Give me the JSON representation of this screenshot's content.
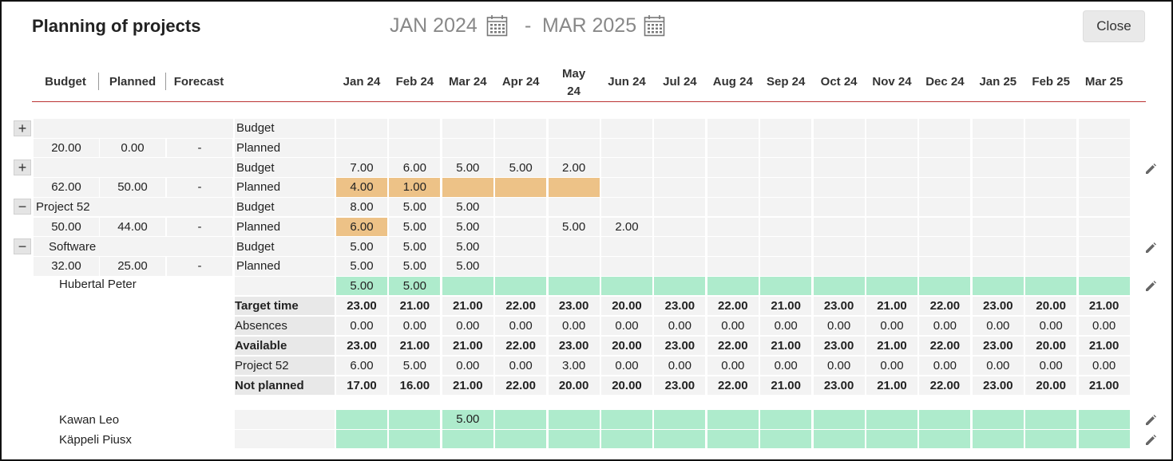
{
  "title": "Planning of projects",
  "date_range": {
    "from": "JAN 2024",
    "separator": "-",
    "to": "MAR 2025"
  },
  "close_label": "Close",
  "headers": {
    "budget": "Budget",
    "planned": "Planned",
    "forecast": "Forecast"
  },
  "months": [
    "Jan 24",
    "Feb 24",
    "Mar 24",
    "Apr 24",
    "May 24",
    "Jun 24",
    "Jul 24",
    "Aug 24",
    "Sep 24",
    "Oct 24",
    "Nov 24",
    "Dec 24",
    "Jan 25",
    "Feb 25",
    "Mar 25"
  ],
  "project_rows": [
    {
      "toggle": "+",
      "name": "",
      "budget": "20.00",
      "planned": "0.00",
      "forecast": "-",
      "budget_values": [
        "",
        "",
        "",
        "",
        "",
        "",
        "",
        "",
        "",
        "",
        "",
        "",
        "",
        "",
        ""
      ],
      "planned_values": [
        "",
        "",
        "",
        "",
        "",
        "",
        "",
        "",
        "",
        "",
        "",
        "",
        "",
        "",
        ""
      ],
      "planned_highlight": [],
      "edit": false
    },
    {
      "toggle": "+",
      "name": "",
      "budget": "62.00",
      "planned": "50.00",
      "forecast": "-",
      "budget_values": [
        "7.00",
        "6.00",
        "5.00",
        "5.00",
        "2.00",
        "",
        "",
        "",
        "",
        "",
        "",
        "",
        "",
        "",
        ""
      ],
      "planned_values": [
        "4.00",
        "1.00",
        "",
        "",
        "",
        "",
        "",
        "",
        "",
        "",
        "",
        "",
        "",
        "",
        ""
      ],
      "planned_highlight": [
        0,
        1,
        2,
        3,
        4
      ],
      "edit": true
    },
    {
      "toggle": "−",
      "name": "Project 52",
      "budget": "50.00",
      "planned": "44.00",
      "forecast": "-",
      "budget_values": [
        "8.00",
        "5.00",
        "5.00",
        "",
        "",
        "",
        "",
        "",
        "",
        "",
        "",
        "",
        "",
        "",
        ""
      ],
      "planned_values": [
        "6.00",
        "5.00",
        "5.00",
        "",
        "5.00",
        "2.00",
        "",
        "",
        "",
        "",
        "",
        "",
        "",
        "",
        ""
      ],
      "planned_highlight": [
        0
      ],
      "edit": false
    },
    {
      "toggle": "−",
      "name": "Software",
      "budget": "32.00",
      "planned": "25.00",
      "forecast": "-",
      "budget_values": [
        "5.00",
        "5.00",
        "5.00",
        "",
        "",
        "",
        "",
        "",
        "",
        "",
        "",
        "",
        "",
        "",
        ""
      ],
      "planned_values": [
        "5.00",
        "5.00",
        "5.00",
        "",
        "",
        "",
        "",
        "",
        "",
        "",
        "",
        "",
        "",
        "",
        ""
      ],
      "planned_highlight": [],
      "edit": true
    }
  ],
  "row_labels": {
    "budget": "Budget",
    "planned": "Planned"
  },
  "hubertal": {
    "name": "Hubertal Peter",
    "values": [
      "5.00",
      "5.00",
      "",
      "",
      "",
      "",
      "",
      "",
      "",
      "",
      "",
      "",
      "",
      "",
      ""
    ],
    "summary": [
      {
        "label": "Target time",
        "bold": true,
        "values": [
          "23.00",
          "21.00",
          "21.00",
          "22.00",
          "23.00",
          "20.00",
          "23.00",
          "22.00",
          "21.00",
          "23.00",
          "21.00",
          "22.00",
          "23.00",
          "20.00",
          "21.00"
        ]
      },
      {
        "label": "Absences",
        "bold": false,
        "values": [
          "0.00",
          "0.00",
          "0.00",
          "0.00",
          "0.00",
          "0.00",
          "0.00",
          "0.00",
          "0.00",
          "0.00",
          "0.00",
          "0.00",
          "0.00",
          "0.00",
          "0.00"
        ]
      },
      {
        "label": "Available",
        "bold": true,
        "values": [
          "23.00",
          "21.00",
          "21.00",
          "22.00",
          "23.00",
          "20.00",
          "23.00",
          "22.00",
          "21.00",
          "23.00",
          "21.00",
          "22.00",
          "23.00",
          "20.00",
          "21.00"
        ]
      },
      {
        "label": "Project 52",
        "bold": false,
        "values": [
          "6.00",
          "5.00",
          "0.00",
          "0.00",
          "3.00",
          "0.00",
          "0.00",
          "0.00",
          "0.00",
          "0.00",
          "0.00",
          "0.00",
          "0.00",
          "0.00",
          "0.00"
        ]
      },
      {
        "label": "Not planned",
        "bold": true,
        "values": [
          "17.00",
          "16.00",
          "21.00",
          "22.00",
          "20.00",
          "20.00",
          "23.00",
          "22.00",
          "21.00",
          "23.00",
          "21.00",
          "22.00",
          "23.00",
          "20.00",
          "21.00"
        ]
      }
    ]
  },
  "other_people": [
    {
      "name": "Kawan Leo",
      "values": [
        "",
        "",
        "5.00",
        "",
        "",
        "",
        "",
        "",
        "",
        "",
        "",
        "",
        "",
        "",
        ""
      ]
    },
    {
      "name": "Käppeli Piusx",
      "values": [
        "",
        "",
        "",
        "",
        "",
        "",
        "",
        "",
        "",
        "",
        "",
        "",
        "",
        "",
        ""
      ]
    }
  ],
  "colors": {
    "orange": "#edc287",
    "green": "#aeebcc",
    "grey_cell": "#f3f3f3",
    "label_grey": "#e8e8e8",
    "accent_line": "#b33333"
  }
}
